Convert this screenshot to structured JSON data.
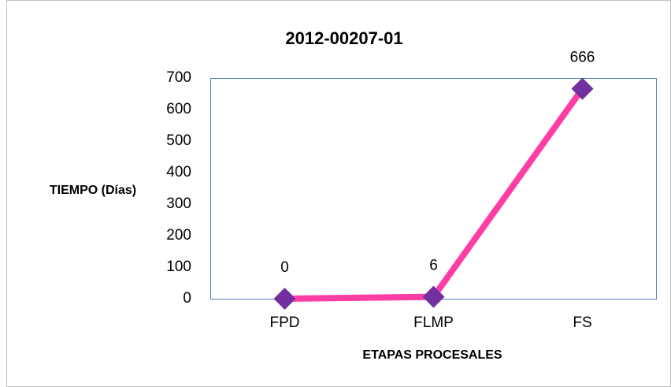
{
  "chart_data": {
    "type": "line",
    "title": "2012-00207-01",
    "x_label": "ETAPAS PROCESALES",
    "y_label": "TIEMPO (Días)",
    "categories": [
      "FPD",
      "FLMP",
      "FS"
    ],
    "series": [
      {
        "name": "TIEMPO (Días)",
        "color": "#ff3ea5",
        "marker_color": "#7030a0",
        "values": [
          0,
          6,
          666
        ]
      }
    ],
    "ylim": [
      0,
      700
    ],
    "yticks": [
      0,
      100,
      200,
      300,
      400,
      500,
      600,
      700
    ],
    "grid": false,
    "legend": false
  }
}
